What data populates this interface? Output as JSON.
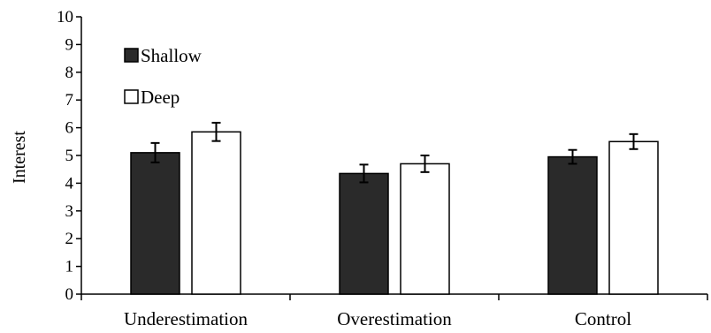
{
  "chart_data": {
    "type": "bar",
    "title": "",
    "xlabel": "",
    "ylabel": "Interest",
    "ylim": [
      0,
      10
    ],
    "yticks": [
      "0",
      "1",
      "2",
      "3",
      "4",
      "5",
      "6",
      "7",
      "8",
      "9",
      "10"
    ],
    "grid": false,
    "legend_position": "top-left",
    "categories": [
      "Underestimation",
      "Overestimation",
      "Control"
    ],
    "series": [
      {
        "name": "Shallow",
        "color": "#2a2a2a",
        "values": [
          5.1,
          4.35,
          4.95
        ],
        "errors": [
          0.35,
          0.32,
          0.25
        ]
      },
      {
        "name": "Deep",
        "color": "#ffffff",
        "values": [
          5.85,
          4.7,
          5.5
        ],
        "errors": [
          0.33,
          0.3,
          0.27
        ]
      }
    ]
  }
}
